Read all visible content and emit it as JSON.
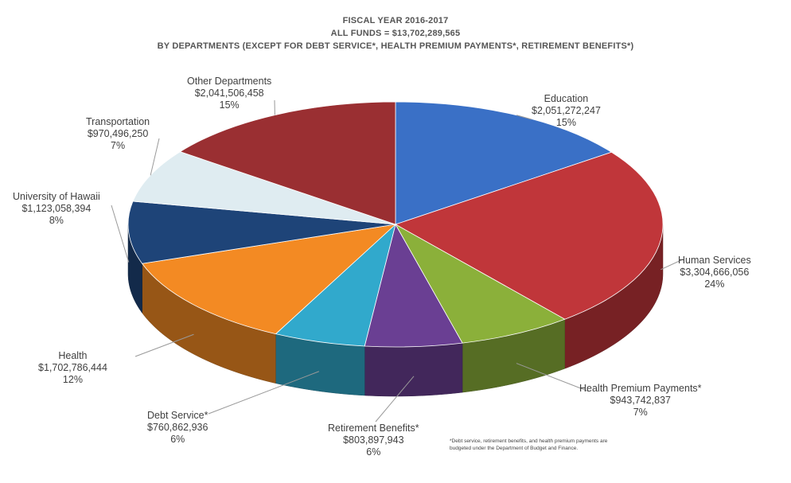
{
  "chart_data": {
    "type": "pie",
    "title_lines": [
      "FISCAL YEAR 2016-2017",
      "ALL FUNDS = $13,702,289,565",
      "BY DEPARTMENTS (EXCEPT FOR DEBT SERVICE*, HEALTH PREMIUM PAYMENTS*, RETIREMENT BENEFITS*)"
    ],
    "slices": [
      {
        "name": "Education",
        "amount": "$2,051,272,247",
        "percent": "15%",
        "value": 2051272247,
        "color": "#3a70c6"
      },
      {
        "name": "Human Services",
        "amount": "$3,304,666,056",
        "percent": "24%",
        "value": 3304666056,
        "color": "#c0363a"
      },
      {
        "name": "Health Premium Payments*",
        "amount": "$943,742,837",
        "percent": "7%",
        "value": 943742837,
        "color": "#8bb03a"
      },
      {
        "name": "Retirement Benefits*",
        "amount": "$803,897,943",
        "percent": "6%",
        "value": 803897943,
        "color": "#6a3f93"
      },
      {
        "name": "Debt Service*",
        "amount": "$760,862,936",
        "percent": "6%",
        "value": 760862936,
        "color": "#31a9cc"
      },
      {
        "name": "Health",
        "amount": "$1,702,786,444",
        "percent": "12%",
        "value": 1702786444,
        "color": "#f38a23"
      },
      {
        "name": "University of Hawaii",
        "amount": "$1,123,058,394",
        "percent": "8%",
        "value": 1123058394,
        "color": "#1e4478"
      },
      {
        "name": "Transportation",
        "amount": "$970,496,250",
        "percent": "7%",
        "value": 970496250,
        "color": "#dfecf1"
      },
      {
        "name": "Other Departments",
        "amount": "$2,041,506,458",
        "percent": "15%",
        "value": 2041506458,
        "color": "#9a2f32"
      }
    ],
    "footnote": "*Debt service, retirement benefits, and health premium payments are budgeted under the Department of Budget and Finance."
  }
}
